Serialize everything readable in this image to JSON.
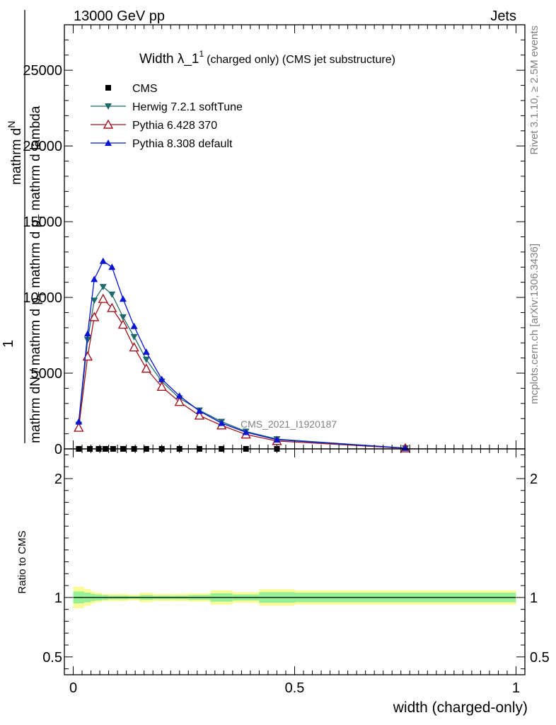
{
  "header": {
    "left": "13000 GeV pp",
    "right": "Jets"
  },
  "side_labels": {
    "rivet": "Rivet 3.1.10, ≥ 2.5M events",
    "mcplots": "mcplots.cern.ch [arXiv:1306.3436]"
  },
  "plot_title": {
    "main": "Width λ_1",
    "sup": "1",
    "rest": "(charged only) (CMS jet substructure)"
  },
  "watermark": "CMS_2021_I1920187",
  "ylabel_main": {
    "one": "1",
    "num": "mathrm d",
    "num_n": "N",
    "den": "mathrm dN / mathrm d p",
    "den_t": "T",
    "den2": " mathrm d p",
    "den2_t": "T",
    "den3": " mathrm d lambda"
  },
  "ylabel_ratio": "Ratio to CMS",
  "xlabel": "width (charged-only)",
  "colors": {
    "cms": "#000000",
    "herwig": "#1f6b6b",
    "pythia6": "#a0141e",
    "pythia8": "#0a14d2",
    "band_inner": "#96f096",
    "band_outer": "#fafa96"
  },
  "chart_data": [
    {
      "type": "line",
      "xlim": [
        -0.02,
        1.02
      ],
      "ylim": [
        0,
        28000
      ],
      "yticks": [
        0,
        5000,
        10000,
        15000,
        20000,
        25000
      ],
      "ytick_labels": [
        "0",
        "5000",
        "10000",
        "15000",
        "20000",
        "25000"
      ],
      "legend_position": "top-left",
      "series": [
        {
          "name": "CMS",
          "marker": "square",
          "color": "#000000",
          "x": [
            0.0125,
            0.0375,
            0.0575,
            0.0725,
            0.09,
            0.1125,
            0.1375,
            0.165,
            0.2,
            0.24,
            0.285,
            0.335,
            0.39,
            0.46
          ],
          "y": [
            0,
            0,
            0,
            0,
            0,
            0,
            0,
            0,
            0,
            0,
            0,
            0,
            0,
            0
          ]
        },
        {
          "name": "Herwig 7.2.1 softTune",
          "marker": "triangle-down",
          "color": "#1f6b6b",
          "x": [
            0.0125,
            0.0325,
            0.0475,
            0.0675,
            0.0875,
            0.1125,
            0.1375,
            0.165,
            0.2,
            0.24,
            0.285,
            0.335,
            0.39,
            0.46,
            0.75
          ],
          "y": [
            1600,
            7200,
            9800,
            10700,
            10200,
            8700,
            7400,
            5900,
            4450,
            3350,
            2550,
            1800,
            1150,
            650,
            50
          ]
        },
        {
          "name": "Pythia 6.428 370",
          "marker": "triangle-up-open",
          "color": "#a0141e",
          "x": [
            0.0125,
            0.0325,
            0.0475,
            0.0675,
            0.0875,
            0.1125,
            0.1375,
            0.165,
            0.2,
            0.24,
            0.285,
            0.335,
            0.39,
            0.46,
            0.75
          ],
          "y": [
            1400,
            6100,
            8700,
            9900,
            9300,
            8200,
            6700,
            5300,
            4100,
            3100,
            2200,
            1550,
            950,
            520,
            40
          ]
        },
        {
          "name": "Pythia 8.308 default",
          "marker": "triangle-up",
          "color": "#0a14d2",
          "x": [
            0.0125,
            0.0325,
            0.0475,
            0.0675,
            0.0875,
            0.1125,
            0.1375,
            0.165,
            0.2,
            0.24,
            0.285,
            0.335,
            0.39,
            0.46,
            0.75
          ],
          "y": [
            1800,
            7600,
            11200,
            12400,
            12000,
            9900,
            8100,
            6400,
            4600,
            3500,
            2500,
            1700,
            1100,
            600,
            50
          ]
        }
      ]
    },
    {
      "type": "area",
      "xlim": [
        -0.02,
        1.02
      ],
      "ylim": [
        0.35,
        2.25
      ],
      "yticks": [
        0.5,
        1,
        2
      ],
      "ytick_labels": [
        "0.5",
        "1",
        "2"
      ],
      "xticks": [
        0,
        0.5,
        1
      ],
      "xtick_labels": [
        "0",
        "0.5",
        "1"
      ],
      "reference_line": 1,
      "bins": [
        {
          "x0": 0.0,
          "x1": 0.025,
          "outer": 0.09,
          "inner": 0.05
        },
        {
          "x0": 0.025,
          "x1": 0.04,
          "outer": 0.07,
          "inner": 0.04
        },
        {
          "x0": 0.04,
          "x1": 0.05,
          "outer": 0.05,
          "inner": 0.03
        },
        {
          "x0": 0.05,
          "x1": 0.065,
          "outer": 0.04,
          "inner": 0.025
        },
        {
          "x0": 0.065,
          "x1": 0.08,
          "outer": 0.03,
          "inner": 0.02
        },
        {
          "x0": 0.08,
          "x1": 0.1,
          "outer": 0.03,
          "inner": 0.015
        },
        {
          "x0": 0.1,
          "x1": 0.125,
          "outer": 0.03,
          "inner": 0.015
        },
        {
          "x0": 0.125,
          "x1": 0.15,
          "outer": 0.025,
          "inner": 0.012
        },
        {
          "x0": 0.15,
          "x1": 0.18,
          "outer": 0.04,
          "inner": 0.02
        },
        {
          "x0": 0.18,
          "x1": 0.22,
          "outer": 0.03,
          "inner": 0.015
        },
        {
          "x0": 0.22,
          "x1": 0.26,
          "outer": 0.03,
          "inner": 0.015
        },
        {
          "x0": 0.26,
          "x1": 0.31,
          "outer": 0.035,
          "inner": 0.02
        },
        {
          "x0": 0.31,
          "x1": 0.36,
          "outer": 0.06,
          "inner": 0.035
        },
        {
          "x0": 0.36,
          "x1": 0.42,
          "outer": 0.045,
          "inner": 0.025
        },
        {
          "x0": 0.42,
          "x1": 0.5,
          "outer": 0.07,
          "inner": 0.045
        },
        {
          "x0": 0.5,
          "x1": 1.0,
          "outer": 0.06,
          "inner": 0.04
        }
      ]
    }
  ]
}
